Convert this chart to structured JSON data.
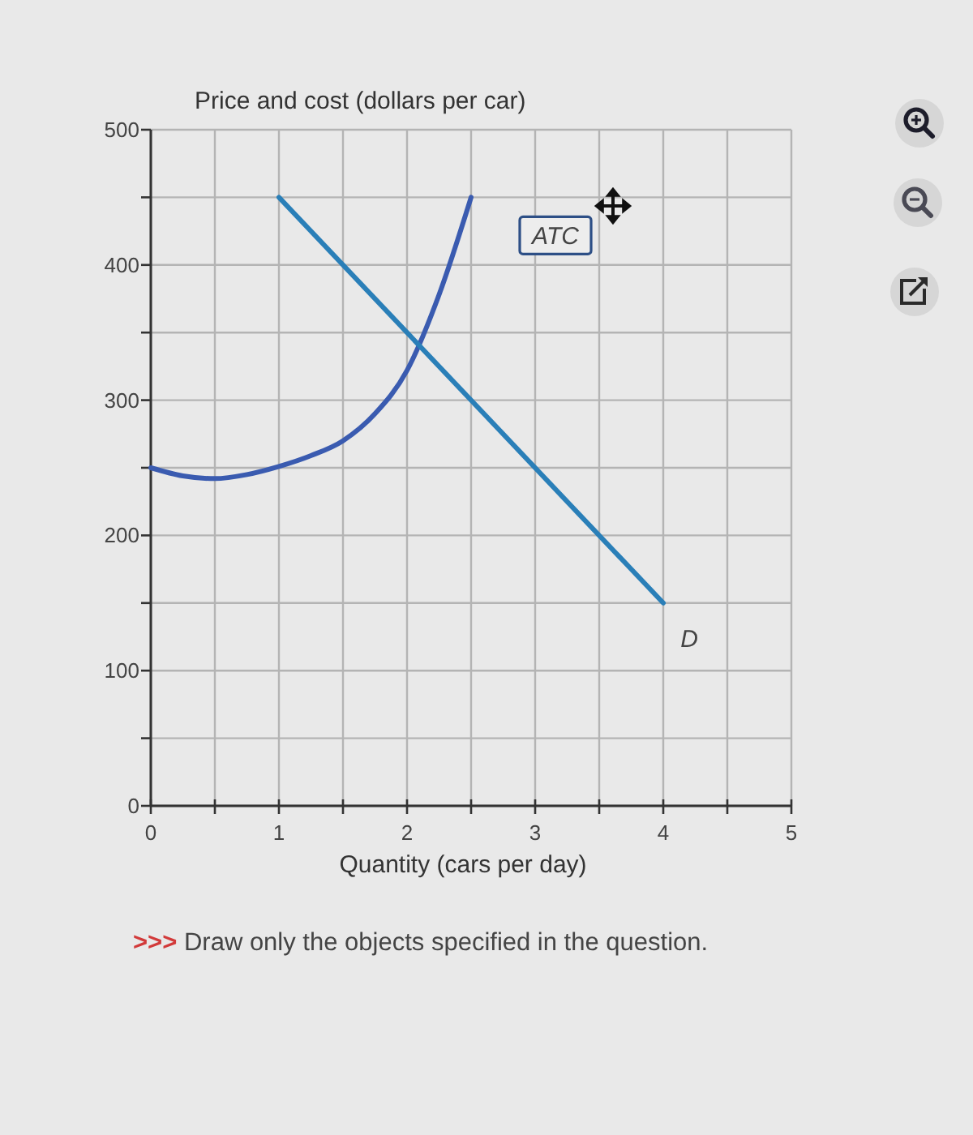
{
  "chart_data": {
    "type": "line",
    "ylabel": "Price and cost (dollars per car)",
    "xlabel": "Quantity (cars per day)",
    "annotations": [
      ">>> Draw only the objects specified in the question."
    ],
    "xlim": [
      0,
      5
    ],
    "xticks": [
      0,
      {
        "value": 0.5,
        "label": null
      },
      1,
      {
        "value": 1.5,
        "label": null
      },
      2,
      {
        "value": 2.5,
        "label": null
      },
      3,
      {
        "value": 3.5,
        "label": null
      },
      4,
      {
        "value": 4.5,
        "label": null
      },
      5
    ],
    "ylim": [
      0,
      500
    ],
    "yticks": [
      0,
      {
        "value": 50,
        "label": null
      },
      100,
      {
        "value": 150,
        "label": null
      },
      200,
      {
        "value": 250,
        "label": null
      },
      300,
      {
        "value": 350,
        "label": null
      },
      400,
      {
        "value": 450,
        "label": null
      },
      500
    ],
    "grid": true,
    "line_style": "solid",
    "series": [
      {
        "name": "ATC",
        "color": "#3a5bb0",
        "x": [
          0,
          0.25,
          0.5,
          0.75,
          1,
          1.25,
          1.5,
          1.75,
          2,
          2.25,
          2.5
        ],
        "values": [
          250,
          244,
          242,
          245,
          251,
          259,
          270,
          290,
          322,
          378,
          450
        ]
      },
      {
        "name": "D",
        "color": "#2a7fb8",
        "x": [
          1,
          4
        ],
        "values": [
          450,
          150
        ]
      }
    ]
  }
}
